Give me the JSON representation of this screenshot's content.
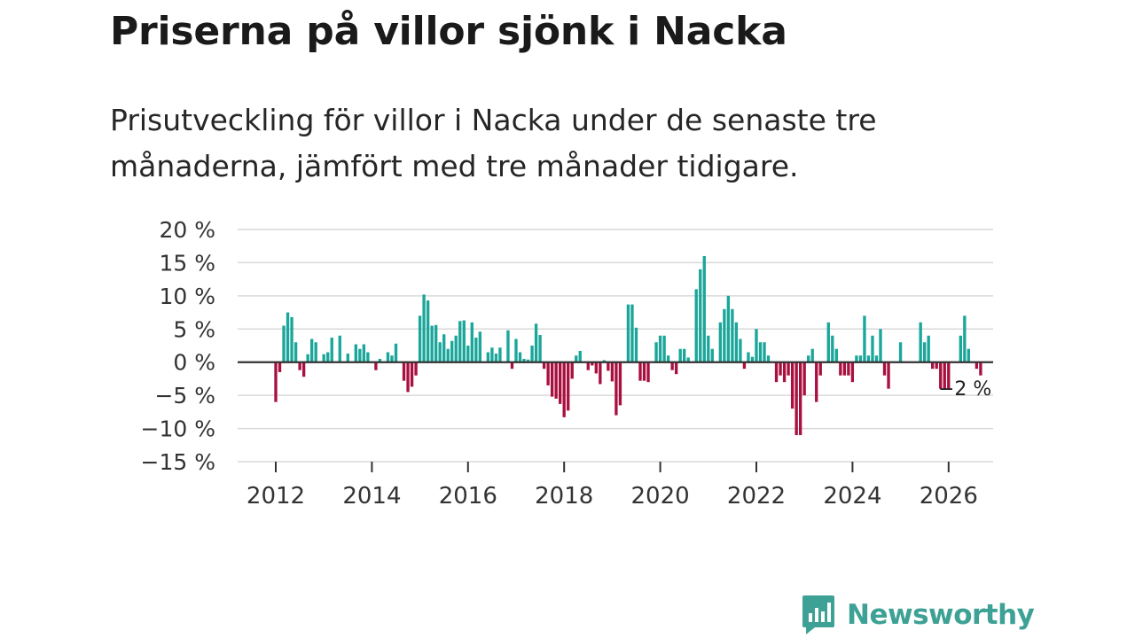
{
  "title": "Priserna på villor sjönk i Nacka",
  "subtitle": "Prisutveckling för villor i Nacka under de senaste tre månaderna, jämfört med tre månader tidigare.",
  "logo_text": "Newsworthy",
  "colors": {
    "positive": "#1aa69a",
    "negative": "#a8103f",
    "grid": "#d9d9d9",
    "zero": "#333333",
    "logo": "#3da195"
  },
  "chart_data": {
    "type": "bar",
    "title": "Priserna på villor sjönk i Nacka",
    "ylabel": "",
    "xlabel": "",
    "ylim": [
      -15,
      20
    ],
    "xlim": [
      2011.25,
      2026.9
    ],
    "y_ticks": [
      20,
      15,
      10,
      5,
      0,
      -5,
      -10,
      -15
    ],
    "y_tick_labels": [
      "20 %",
      "15 %",
      "10 %",
      "5 %",
      "0 %",
      "−5 %",
      "−10 %",
      "−15 %"
    ],
    "x_ticks": [
      2012,
      2014,
      2016,
      2018,
      2020,
      2022,
      2024,
      2026
    ],
    "x_tick_labels": [
      "2012",
      "2014",
      "2016",
      "2018",
      "2020",
      "2022",
      "2024",
      "2026"
    ],
    "start": 2012.0,
    "step": 0.08333,
    "values": [
      -6,
      -1.5,
      5.5,
      7.5,
      6.8,
      3,
      -1.2,
      -2.2,
      1.2,
      3.5,
      3,
      0,
      1.2,
      1.5,
      3.7,
      0,
      4,
      0,
      1.3,
      0,
      2.7,
      2,
      2.7,
      1.5,
      0,
      -1.2,
      0.5,
      0,
      1.5,
      1,
      2.8,
      0,
      -2.8,
      -4.5,
      -3.7,
      -2,
      7,
      10.2,
      9.3,
      5.5,
      5.6,
      3,
      4.2,
      2,
      3.2,
      4,
      6.2,
      6.3,
      2.5,
      6,
      3.7,
      4.6,
      0,
      1.5,
      2.2,
      1.3,
      2.2,
      0,
      4.8,
      -1,
      3.5,
      1.5,
      0.5,
      0.4,
      2.5,
      5.8,
      4.1,
      -1,
      -3.5,
      -5.2,
      -5.5,
      -6.3,
      -8.3,
      -7.3,
      -2.5,
      1,
      1.7,
      0,
      -1.2,
      -0.5,
      -1.7,
      -3.3,
      0.3,
      -1.3,
      -2.9,
      -8,
      -6.5,
      0,
      8.7,
      8.7,
      5.2,
      -2.8,
      -2.8,
      -3,
      0,
      3,
      4,
      4,
      1,
      -1.2,
      -1.8,
      2,
      2,
      0.7,
      0,
      11,
      14,
      16,
      4,
      2,
      0,
      6,
      8,
      10,
      8,
      6,
      3.5,
      -1,
      1.5,
      0.8,
      5,
      3,
      3,
      1,
      0,
      -3,
      -2,
      -3,
      -2,
      -7,
      -11,
      -11,
      -5,
      1,
      2,
      -6,
      -2,
      0,
      6,
      4,
      2,
      -2,
      -2,
      -2,
      -3,
      1,
      1,
      7,
      1,
      4,
      1,
      5,
      -2,
      -4,
      0,
      0,
      3,
      0,
      0,
      0,
      0,
      6,
      3,
      4,
      -1,
      -1,
      -4,
      -4,
      -4,
      0,
      0,
      4,
      7,
      2,
      0,
      -1,
      -2
    ],
    "annotations": [
      {
        "text": "−2 %",
        "x": 2026.17,
        "y": -2
      }
    ]
  }
}
